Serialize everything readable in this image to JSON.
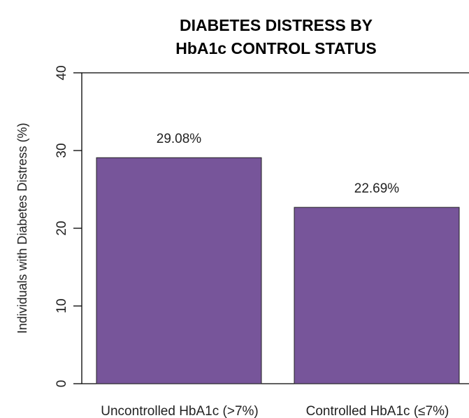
{
  "chart_data": {
    "type": "bar",
    "title_lines": [
      "DIABETES DISTRESS BY",
      "HbA1c CONTROL STATUS"
    ],
    "xlabel": "",
    "ylabel": "Individuals with Diabetes Distress (%)",
    "categories": [
      "Uncontrolled HbA1c (>7%)",
      "Controlled HbA1c (≤7%)"
    ],
    "values": [
      29.08,
      22.69
    ],
    "data_labels": [
      "29.08%",
      "22.69%"
    ],
    "ylim": [
      0,
      40
    ],
    "yticks": [
      "0",
      "10",
      "20",
      "30",
      "40"
    ],
    "grid": false,
    "legend": "none",
    "bar_color": "#77559a"
  }
}
